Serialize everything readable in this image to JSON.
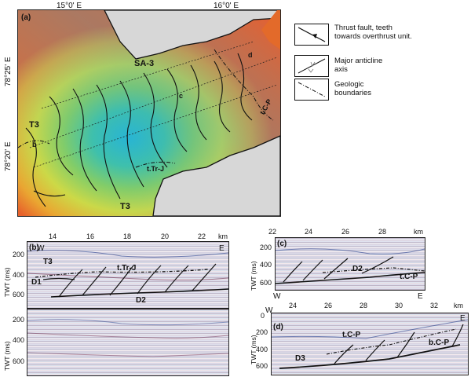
{
  "panel_a": {
    "label": "(a)",
    "lon_labels": [
      "15°0' E",
      "16°0' E"
    ],
    "lat_labels": [
      "78°25' E",
      "78°20' E"
    ],
    "map_labels": [
      "SA-3",
      "T3",
      "T3",
      "t.Tr-J",
      "t.C-P",
      "b",
      "c",
      "d"
    ]
  },
  "legend": {
    "items": [
      {
        "text": "Thrust fault, teeth towards overthrust unit.",
        "icon": "thrust-fault-icon"
      },
      {
        "text": "Major anticline axis",
        "icon": "anticline-axis-icon"
      },
      {
        "text": "Geologic boundaries",
        "icon": "geologic-boundary-icon"
      }
    ]
  },
  "panel_b": {
    "label": "(b)",
    "x_ticks": [
      "14",
      "16",
      "18",
      "20",
      "22"
    ],
    "x_unit": "km",
    "w": "W",
    "e": "E",
    "y_label": "TWT (ms)",
    "y_ticks": [
      "200",
      "400",
      "600"
    ],
    "y_ticks_lower": [
      "200",
      "400",
      "600"
    ],
    "labels": [
      "T3",
      "t.Tr-J",
      "D1",
      "D2"
    ]
  },
  "panel_c": {
    "label": "(c)",
    "x_ticks": [
      "22",
      "24",
      "26",
      "28"
    ],
    "x_unit": "km",
    "w": "W",
    "e": "E",
    "y_label": "TWT (ms)",
    "y_ticks": [
      "200",
      "400",
      "600"
    ],
    "labels": [
      "D2",
      "t.C-P"
    ]
  },
  "panel_d": {
    "label": "(d)",
    "x_ticks": [
      "24",
      "26",
      "28",
      "30",
      "32"
    ],
    "x_unit": "km",
    "w": "W",
    "e": "E",
    "y_label": "TWT (ms)",
    "y_ticks": [
      "0",
      "200",
      "400",
      "600"
    ],
    "labels": [
      "t.C-P",
      "b.C-P",
      "D3"
    ]
  }
}
